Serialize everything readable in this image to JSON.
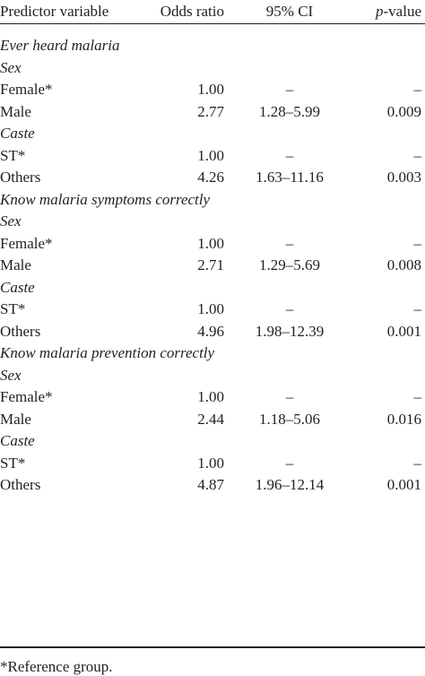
{
  "table": {
    "headers": {
      "predictor": "Predictor variable",
      "odds": "Odds ratio",
      "ci": "95% CI",
      "p_italic": "p",
      "p_suffix": "-value"
    },
    "rows": [
      {
        "type": "section",
        "label": "Ever heard malaria"
      },
      {
        "type": "group",
        "label": "Sex"
      },
      {
        "type": "data",
        "label": "Female*",
        "odds": "1.00",
        "ci": "–",
        "p": "–"
      },
      {
        "type": "data",
        "label": "Male",
        "odds": "2.77",
        "ci": "1.28–5.99",
        "p": "0.009"
      },
      {
        "type": "group",
        "label": "Caste"
      },
      {
        "type": "data",
        "label": "ST*",
        "odds": "1.00",
        "ci": "–",
        "p": "–"
      },
      {
        "type": "data",
        "label": "Others",
        "odds": "4.26",
        "ci": "1.63–11.16",
        "p": "0.003"
      },
      {
        "type": "section",
        "label": "Know malaria symptoms correctly"
      },
      {
        "type": "group",
        "label": "Sex"
      },
      {
        "type": "data",
        "label": "Female*",
        "odds": "1.00",
        "ci": "–",
        "p": "–"
      },
      {
        "type": "data",
        "label": "Male",
        "odds": "2.71",
        "ci": "1.29–5.69",
        "p": "0.008"
      },
      {
        "type": "group",
        "label": "Caste"
      },
      {
        "type": "data",
        "label": "ST*",
        "odds": "1.00",
        "ci": "–",
        "p": "–"
      },
      {
        "type": "data",
        "label": "Others",
        "odds": "4.96",
        "ci": "1.98–12.39",
        "p": "0.001"
      },
      {
        "type": "section",
        "label": "Know malaria prevention correctly"
      },
      {
        "type": "group",
        "label": "Sex"
      },
      {
        "type": "data",
        "label": "Female*",
        "odds": "1.00",
        "ci": "–",
        "p": "–"
      },
      {
        "type": "data",
        "label": "Male",
        "odds": "2.44",
        "ci": "1.18–5.06",
        "p": "0.016"
      },
      {
        "type": "group",
        "label": "Caste"
      },
      {
        "type": "data",
        "label": "ST*",
        "odds": "1.00",
        "ci": "–",
        "p": "–"
      },
      {
        "type": "data",
        "label": "Others",
        "odds": "4.87",
        "ci": "1.96–12.14",
        "p": "0.001"
      }
    ]
  },
  "footnote": "*Reference group."
}
